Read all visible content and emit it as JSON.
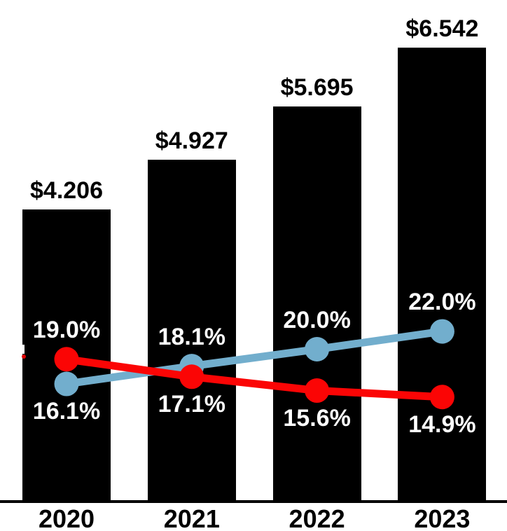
{
  "chart_data": {
    "type": "bar",
    "subtype": "combo-bar-line",
    "title": "",
    "xlabel": "",
    "ylabel": "",
    "categories": [
      "2020",
      "2021",
      "2022",
      "2023"
    ],
    "bar_series": {
      "name": "dollar-amount-bars",
      "values": [
        4.206,
        4.927,
        5.695,
        6.542
      ],
      "labels": [
        "$4.206",
        "$4.927",
        "$5.695",
        "$6.542"
      ],
      "color": "#000000",
      "implied_value_axis_range": [
        0,
        7.2
      ]
    },
    "line_series": [
      {
        "name": "blue-rising-percentage-line",
        "color": "#72aecd",
        "values": [
          16.1,
          18.1,
          20.0,
          22.0
        ],
        "labels": [
          "16.1%",
          "18.1%",
          "20.0%",
          "22.0%"
        ]
      },
      {
        "name": "red-declining-percentage-line",
        "color": "#fb0505",
        "values": [
          19.0,
          17.1,
          15.6,
          14.9
        ],
        "labels": [
          "19.0%",
          "17.1%",
          "15.6%",
          "14.9%"
        ]
      }
    ],
    "background_color": "#ffffff",
    "axis_color": "#000000",
    "value_label_color": "#000000",
    "pct_label_color": "#ffffff",
    "grid": false,
    "legend": false
  }
}
